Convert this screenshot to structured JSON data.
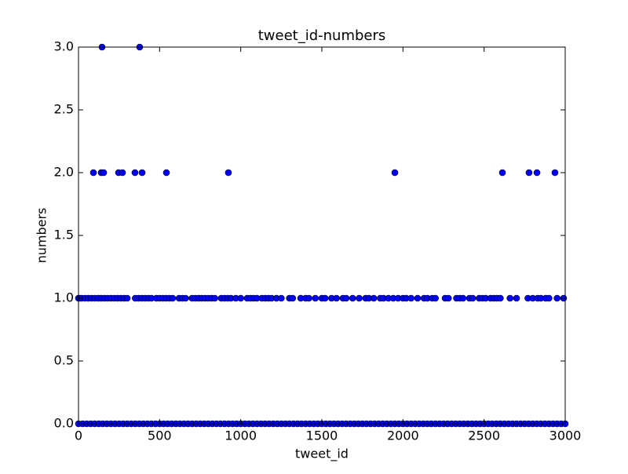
{
  "chart_data": {
    "type": "scatter",
    "title": "tweet_id-numbers",
    "xlabel": "tweet_id",
    "ylabel": "numbers",
    "color": "#0000ff",
    "x": [
      145,
      377,
      92,
      140,
      155,
      247,
      271,
      348,
      392,
      542,
      924,
      1950,
      2613,
      2777,
      2826,
      2937,
      0,
      10,
      20,
      40,
      60,
      80,
      100,
      120,
      140,
      160,
      180,
      200,
      220,
      240,
      260,
      280,
      300,
      350,
      370,
      390,
      410,
      430,
      450,
      480,
      500,
      520,
      540,
      560,
      580,
      620,
      640,
      660,
      700,
      720,
      740,
      760,
      780,
      800,
      820,
      840,
      880,
      900,
      920,
      940,
      970,
      1000,
      1040,
      1060,
      1080,
      1100,
      1130,
      1150,
      1170,
      1190,
      1220,
      1250,
      1300,
      1320,
      1370,
      1400,
      1420,
      1460,
      1500,
      1520,
      1560,
      1590,
      1630,
      1650,
      1690,
      1730,
      1770,
      1790,
      1820,
      1860,
      1880,
      1910,
      1940,
      1970,
      2000,
      2020,
      2050,
      2090,
      2130,
      2150,
      2180,
      2200,
      2260,
      2280,
      2330,
      2350,
      2370,
      2410,
      2430,
      2470,
      2490,
      2510,
      2540,
      2560,
      2580,
      2600,
      2660,
      2700,
      2770,
      2800,
      2830,
      2850,
      2880,
      2900,
      2950,
      2990,
      0,
      25,
      50,
      75,
      100,
      125,
      150,
      175,
      200,
      225,
      250,
      275,
      300,
      325,
      350,
      375,
      400,
      425,
      450,
      475,
      500,
      525,
      550,
      575,
      600,
      625,
      650,
      675,
      700,
      725,
      750,
      775,
      800,
      825,
      850,
      875,
      900,
      925,
      950,
      975,
      1000,
      1025,
      1050,
      1075,
      1100,
      1125,
      1150,
      1175,
      1200,
      1225,
      1250,
      1275,
      1300,
      1325,
      1350,
      1375,
      1400,
      1425,
      1450,
      1475,
      1500,
      1525,
      1550,
      1575,
      1600,
      1625,
      1650,
      1675,
      1700,
      1725,
      1750,
      1775,
      1800,
      1825,
      1850,
      1875,
      1900,
      1925,
      1950,
      1975,
      2000,
      2025,
      2050,
      2075,
      2100,
      2125,
      2150,
      2175,
      2200,
      2225,
      2250,
      2275,
      2300,
      2325,
      2350,
      2375,
      2400,
      2425,
      2450,
      2475,
      2500,
      2525,
      2550,
      2575,
      2600,
      2625,
      2650,
      2675,
      2700,
      2725,
      2750,
      2775,
      2800,
      2825,
      2850,
      2875,
      2900,
      2925,
      2950,
      2975,
      3000
    ],
    "values": [
      3,
      3,
      2,
      2,
      2,
      2,
      2,
      2,
      2,
      2,
      2,
      2,
      2,
      2,
      2,
      2,
      1,
      1,
      1,
      1,
      1,
      1,
      1,
      1,
      1,
      1,
      1,
      1,
      1,
      1,
      1,
      1,
      1,
      1,
      1,
      1,
      1,
      1,
      1,
      1,
      1,
      1,
      1,
      1,
      1,
      1,
      1,
      1,
      1,
      1,
      1,
      1,
      1,
      1,
      1,
      1,
      1,
      1,
      1,
      1,
      1,
      1,
      1,
      1,
      1,
      1,
      1,
      1,
      1,
      1,
      1,
      1,
      1,
      1,
      1,
      1,
      1,
      1,
      1,
      1,
      1,
      1,
      1,
      1,
      1,
      1,
      1,
      1,
      1,
      1,
      1,
      1,
      1,
      1,
      1,
      1,
      1,
      1,
      1,
      1,
      1,
      1,
      1,
      1,
      1,
      1,
      1,
      1,
      1,
      1,
      1,
      1,
      1,
      1,
      1,
      1,
      1,
      1,
      1,
      1,
      1,
      1,
      1,
      1,
      1,
      1,
      0,
      0,
      0,
      0,
      0,
      0,
      0,
      0,
      0,
      0,
      0,
      0,
      0,
      0,
      0,
      0,
      0,
      0,
      0,
      0,
      0,
      0,
      0,
      0,
      0,
      0,
      0,
      0,
      0,
      0,
      0,
      0,
      0,
      0,
      0,
      0,
      0,
      0,
      0,
      0,
      0,
      0,
      0,
      0,
      0,
      0,
      0,
      0,
      0,
      0,
      0,
      0,
      0,
      0,
      0,
      0,
      0,
      0,
      0,
      0,
      0,
      0,
      0,
      0,
      0,
      0,
      0,
      0,
      0,
      0,
      0,
      0,
      0,
      0,
      0,
      0,
      0,
      0,
      0,
      0,
      0,
      0,
      0,
      0,
      0,
      0,
      0,
      0,
      0,
      0,
      0,
      0,
      0,
      0,
      0,
      0,
      0,
      0,
      0,
      0,
      0,
      0,
      0,
      0,
      0,
      0,
      0,
      0,
      0,
      0,
      0,
      0,
      0,
      0,
      0,
      0,
      0,
      0,
      0,
      0,
      0
    ],
    "xlim": [
      0,
      3000
    ],
    "xticks": [
      0,
      500,
      1000,
      1500,
      2000,
      2500,
      3000
    ],
    "ylim": [
      0,
      3
    ],
    "yticks": [
      {
        "value": 0,
        "label": "0.0"
      },
      {
        "value": 0.5,
        "label": "0.5"
      },
      {
        "value": 1,
        "label": "1.0"
      },
      {
        "value": 1.5,
        "label": "1.5"
      },
      {
        "value": 2,
        "label": "2.0"
      },
      {
        "value": 2.5,
        "label": "2.5"
      },
      {
        "value": 3,
        "label": "3.0"
      }
    ],
    "grid": false
  }
}
